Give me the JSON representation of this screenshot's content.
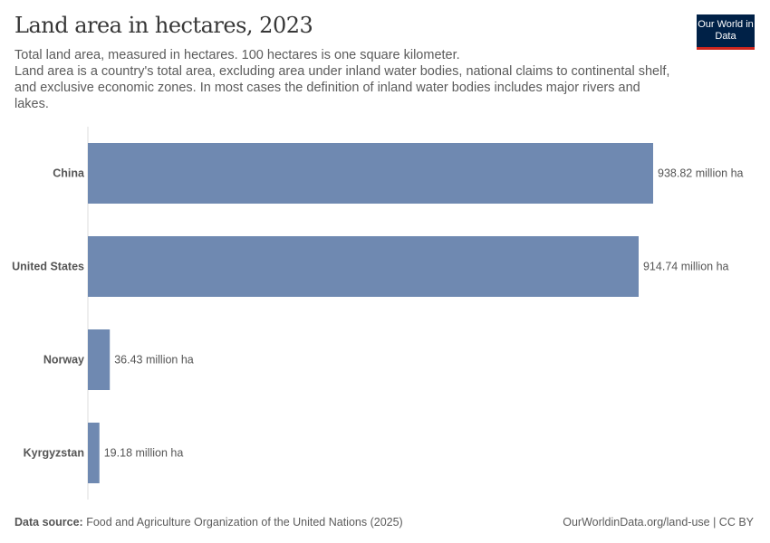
{
  "title": "Land area in hectares, 2023",
  "subtitle_line1": "Total land area, measured in hectares. 100 hectares is one square kilometer.",
  "subtitle_line2": "Land area is a country's total area, excluding area under inland water bodies, national claims to continental shelf, and exclusive economic zones. In most cases the definition of inland water bodies includes major rivers and lakes.",
  "logo": "Our World in Data",
  "footer": {
    "source_label": "Data source:",
    "source": " Food and Agriculture Organization of the United Nations (2025)",
    "url": "OurWorldinData.org/land-use | CC BY"
  },
  "colors": {
    "bar": "#6f89b1",
    "axis": "#dddddd",
    "logo_bg": "#002147",
    "logo_accent": "#ce261e"
  },
  "chart_data": {
    "type": "bar",
    "orientation": "horizontal",
    "unit": "million ha",
    "categories": [
      "China",
      "United States",
      "Norway",
      "Kyrgyzstan"
    ],
    "values": [
      938.82,
      914.74,
      36.43,
      19.18
    ],
    "labels": [
      "938.82 million ha",
      "914.74 million ha",
      "36.43 million ha",
      "19.18 million ha"
    ],
    "xlim": [
      0,
      938.82
    ],
    "grid": false
  }
}
